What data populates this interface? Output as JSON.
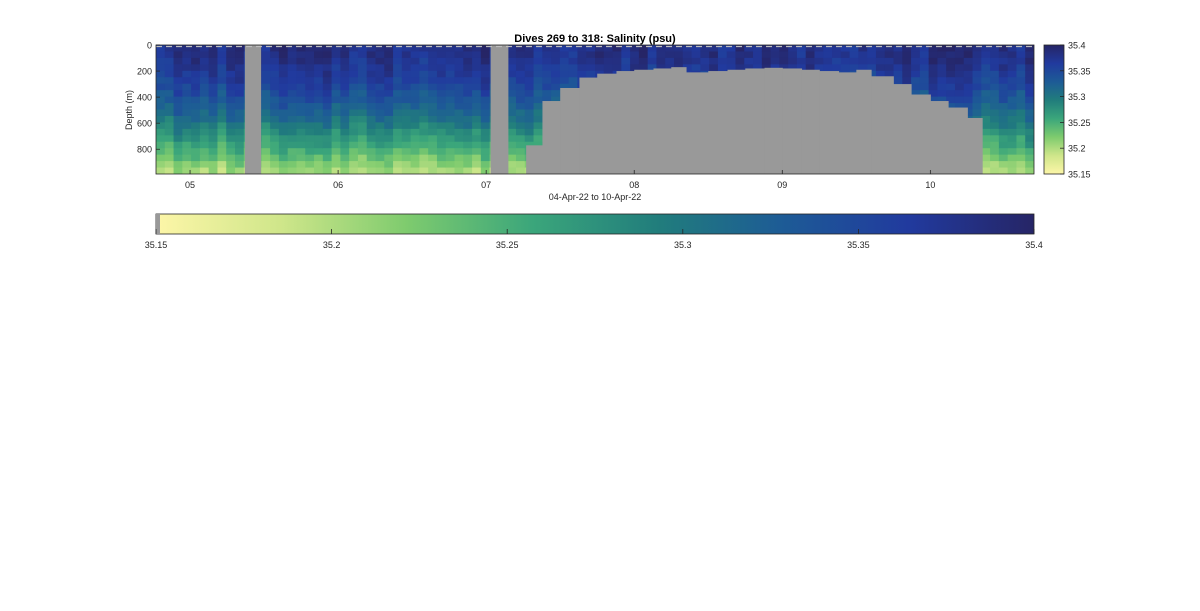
{
  "chart_data": {
    "type": "heatmap",
    "title": "Dives 269 to 318: Salinity (psu)",
    "xlabel": "04-Apr-22 to 10-Apr-22",
    "ylabel": "Depth (m)",
    "x_ticks": [
      "05",
      "06",
      "07",
      "08",
      "09",
      "10"
    ],
    "x_tick_values": [
      5,
      6,
      7,
      8,
      9,
      10
    ],
    "xlim": [
      4.77,
      10.7
    ],
    "y_ticks": [
      "0",
      "200",
      "400",
      "600",
      "800"
    ],
    "y_tick_values": [
      0,
      200,
      400,
      600,
      800
    ],
    "ylim": [
      0,
      990
    ],
    "y_reversed": true,
    "colorbar": {
      "ticks": [
        "35.4",
        "35.35",
        "35.3",
        "35.25",
        "35.2",
        "35.15"
      ],
      "tick_values": [
        35.4,
        35.35,
        35.3,
        35.25,
        35.2,
        35.15
      ],
      "range": [
        35.15,
        35.4
      ]
    },
    "colorbar_horizontal": {
      "ticks": [
        "35.15",
        "35.2",
        "35.25",
        "35.3",
        "35.35",
        "35.4"
      ],
      "tick_values": [
        35.15,
        35.2,
        35.25,
        35.3,
        35.35,
        35.4
      ],
      "range": [
        35.15,
        35.4
      ]
    },
    "no_data_regions": [
      {
        "x_start": 5.37,
        "x_end": 5.48,
        "depth_from": 0,
        "depth_to": 990
      },
      {
        "x_start": 7.03,
        "x_end": 7.15,
        "depth_from": 0,
        "depth_to": 990
      }
    ],
    "max_depth_profile": {
      "x": [
        7.15,
        7.27,
        7.38,
        7.5,
        7.63,
        7.75,
        7.88,
        8.0,
        8.13,
        8.25,
        8.35,
        8.5,
        8.63,
        8.75,
        8.88,
        9.0,
        9.13,
        9.25,
        9.38,
        9.5,
        9.6,
        9.75,
        9.87,
        10.0,
        10.12,
        10.25,
        10.35
      ],
      "depth": [
        990,
        770,
        430,
        330,
        250,
        220,
        200,
        190,
        180,
        170,
        210,
        200,
        190,
        180,
        175,
        180,
        190,
        200,
        210,
        190,
        240,
        300,
        380,
        430,
        480,
        560,
        990
      ]
    },
    "colormap": "haline",
    "colormap_stops": [
      "#fdf6a8",
      "#cfe68a",
      "#7ecb6e",
      "#3ba67b",
      "#217d7c",
      "#1d5b96",
      "#213a9e",
      "#262566"
    ],
    "no_data_color": "#999999"
  }
}
